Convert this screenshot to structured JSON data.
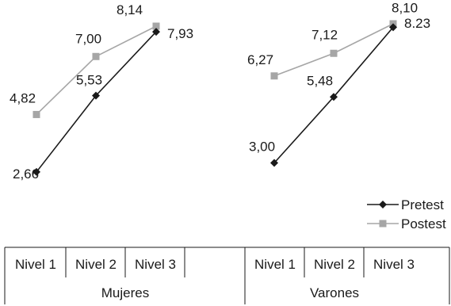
{
  "chart_data": {
    "type": "line",
    "groups": [
      {
        "name": "Mujeres",
        "categories": [
          "Nivel 1",
          "Nivel 2",
          "Nivel 3"
        ],
        "series": [
          {
            "name": "Pretest",
            "values": [
              2.66,
              5.53,
              7.93
            ],
            "labels": [
              "2,66",
              "5,53",
              "7,93"
            ]
          },
          {
            "name": "Postest",
            "values": [
              4.82,
              7.0,
              8.14
            ],
            "labels": [
              "4,82",
              "7,00",
              "8,14"
            ]
          }
        ]
      },
      {
        "name": "Varones",
        "categories": [
          "Nivel 1",
          "Nivel 2",
          "Nivel 3"
        ],
        "series": [
          {
            "name": "Pretest",
            "values": [
              3.0,
              5.48,
              8.1
            ],
            "labels": [
              "3,00",
              "5,48",
              "8,10"
            ]
          },
          {
            "name": "Postest",
            "values": [
              6.27,
              7.12,
              8.23
            ],
            "labels": [
              "6,27",
              "7,12",
              "8.23"
            ]
          }
        ]
      }
    ],
    "legend": [
      {
        "name": "Pretest",
        "marker": "diamond",
        "color": "#1a1a1a"
      },
      {
        "name": "Postest",
        "marker": "square",
        "color": "#a6a6a6"
      }
    ],
    "legend_position": "right",
    "grid": false,
    "colors": {
      "pretest": "#1a1a1a",
      "postest": "#a6a6a6"
    }
  }
}
